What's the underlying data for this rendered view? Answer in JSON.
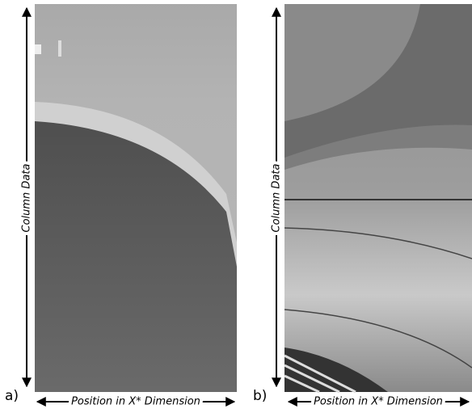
{
  "panels": [
    {
      "label": "a)",
      "y_axis": "Column Data",
      "x_axis": "Position in X* Dimension"
    },
    {
      "label": "b)",
      "y_axis": "Column Data",
      "x_axis": "Position in X* Dimension"
    }
  ]
}
